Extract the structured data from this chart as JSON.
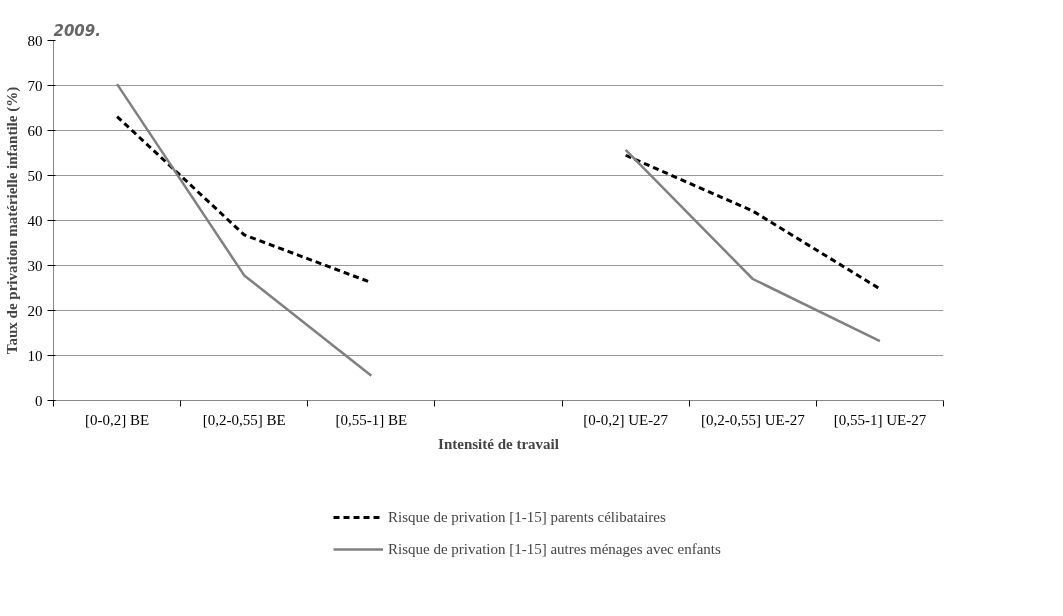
{
  "chart_data": {
    "type": "line",
    "title": "2009.",
    "xlabel": "Intensité de travail",
    "ylabel": "Taux de privation matérielle infantile (%)",
    "categories": [
      "[0-0,2] BE",
      "[0,2-0,55] BE",
      "[0,55-1] BE",
      null,
      "[0-0,2] UE-27",
      "[0,2-0,55] UE-27",
      "[0,55-1] UE-27"
    ],
    "series": [
      {
        "name": "Risque de privation [1-15] parents célibataires",
        "color": "#000000",
        "line_style": "dashed",
        "values": [
          63.1,
          36.8,
          26.2,
          null,
          54.5,
          42.1,
          24.8
        ]
      },
      {
        "name": "Risque de privation [1-15] autres ménages avec enfants",
        "color": "#808080",
        "line_style": "solid",
        "values": [
          70.3,
          27.8,
          5.5,
          null,
          55.7,
          27.0,
          13.2
        ]
      }
    ],
    "ylim": [
      0,
      80
    ],
    "yticks": [
      0,
      10,
      20,
      30,
      40,
      50,
      60,
      70,
      80
    ],
    "grid": "y",
    "legend": "bottom"
  }
}
